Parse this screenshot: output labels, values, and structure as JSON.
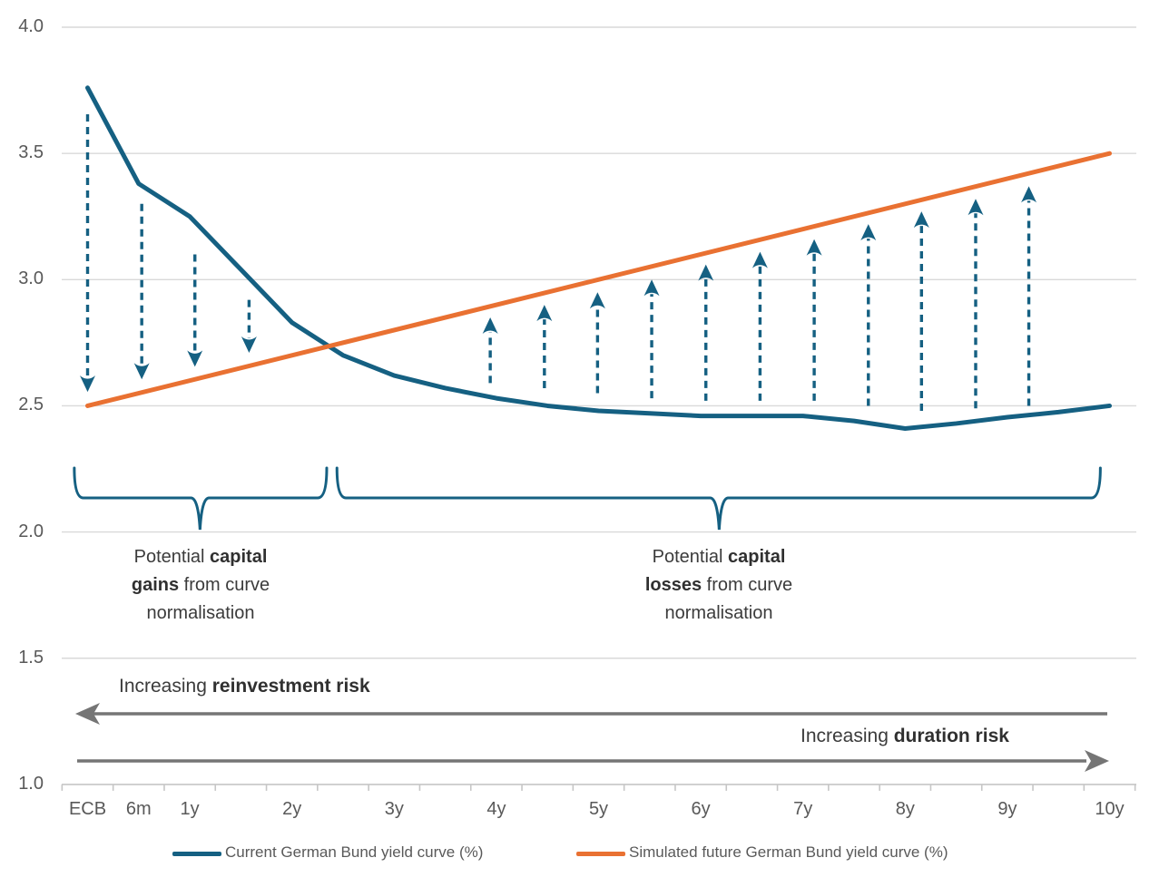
{
  "colors": {
    "blue": "#156082",
    "orange": "#E97132",
    "gray_arrow": "#757575",
    "grid": "#D9D9D9",
    "axis": "#C6C6C6",
    "tick_label": "#595959",
    "annotation_text": "#3b3b3b"
  },
  "chart_data": {
    "type": "line",
    "title": "",
    "x_axis": {
      "range": [
        -0.25,
        10.25
      ],
      "tick_step": 0.5,
      "labels": [
        {
          "label": "ECB",
          "x": 0
        },
        {
          "label": "6m",
          "x": 0.5
        },
        {
          "label": "1y",
          "x": 1
        },
        {
          "label": "2y",
          "x": 2
        },
        {
          "label": "3y",
          "x": 3
        },
        {
          "label": "4y",
          "x": 4
        },
        {
          "label": "5y",
          "x": 5
        },
        {
          "label": "6y",
          "x": 6
        },
        {
          "label": "7y",
          "x": 7
        },
        {
          "label": "8y",
          "x": 8
        },
        {
          "label": "9y",
          "x": 9
        },
        {
          "label": "10y",
          "x": 10
        }
      ]
    },
    "y_axis": {
      "range": [
        1.0,
        4.0
      ],
      "ticks": [
        "4.0",
        "3.5",
        "3.0",
        "2.5",
        "2.0",
        "1.5",
        "1.0"
      ],
      "tick_values": [
        4.0,
        3.5,
        3.0,
        2.5,
        2.0,
        1.5,
        1.0
      ],
      "gridlines": true
    },
    "series": [
      {
        "name": "Current German Bund yield curve (%)",
        "color": "#156082",
        "points": [
          [
            0,
            3.76
          ],
          [
            0.5,
            3.38
          ],
          [
            1,
            3.25
          ],
          [
            1.5,
            3.04
          ],
          [
            2,
            2.83
          ],
          [
            2.5,
            2.7
          ],
          [
            3,
            2.62
          ],
          [
            3.5,
            2.57
          ],
          [
            4,
            2.53
          ],
          [
            4.5,
            2.5
          ],
          [
            5,
            2.48
          ],
          [
            5.5,
            2.47
          ],
          [
            6,
            2.46
          ],
          [
            6.5,
            2.46
          ],
          [
            7,
            2.46
          ],
          [
            7.5,
            2.44
          ],
          [
            8,
            2.41
          ],
          [
            8.5,
            2.43
          ],
          [
            9,
            2.455
          ],
          [
            9.5,
            2.475
          ],
          [
            10,
            2.5
          ]
        ]
      },
      {
        "name": "Simulated future German Bund yield curve (%)",
        "color": "#E97132",
        "points": [
          [
            0,
            2.5
          ],
          [
            10,
            3.5
          ]
        ]
      }
    ],
    "gain_arrows": [
      {
        "x": 0.0,
        "from": 3.655,
        "to": 2.555
      },
      {
        "x": 0.53,
        "from": 3.3,
        "to": 2.605
      },
      {
        "x": 1.05,
        "from": 3.1,
        "to": 2.655
      },
      {
        "x": 1.58,
        "from": 2.92,
        "to": 2.71
      }
    ],
    "loss_arrows": [
      {
        "x": 3.94,
        "from": 2.59,
        "to": 2.85
      },
      {
        "x": 4.47,
        "from": 2.57,
        "to": 2.9
      },
      {
        "x": 4.99,
        "from": 2.55,
        "to": 2.95
      },
      {
        "x": 5.52,
        "from": 2.53,
        "to": 3.0
      },
      {
        "x": 6.05,
        "from": 2.52,
        "to": 3.06
      },
      {
        "x": 6.58,
        "from": 2.52,
        "to": 3.11
      },
      {
        "x": 7.11,
        "from": 2.52,
        "to": 3.16
      },
      {
        "x": 7.64,
        "from": 2.5,
        "to": 3.22
      },
      {
        "x": 8.16,
        "from": 2.48,
        "to": 3.27
      },
      {
        "x": 8.69,
        "from": 2.49,
        "to": 3.32
      },
      {
        "x": 9.21,
        "from": 2.5,
        "to": 3.37
      }
    ],
    "braces": [
      {
        "from_x": -0.13,
        "to_x": 2.34,
        "pointer_x": 1.1
      },
      {
        "from_x": 2.44,
        "to_x": 9.91,
        "pointer_x": 6.18
      }
    ]
  },
  "annotations": {
    "gains": {
      "lines": [
        [
          {
            "t": "Potential ",
            "b": false
          },
          {
            "t": "capital",
            "b": true
          }
        ],
        [
          {
            "t": "gains",
            "b": true
          },
          {
            "t": " from curve",
            "b": false
          }
        ],
        [
          {
            "t": "normalisation",
            "b": false
          }
        ]
      ]
    },
    "losses": {
      "lines": [
        [
          {
            "t": "Potential ",
            "b": false
          },
          {
            "t": "capital",
            "b": true
          }
        ],
        [
          {
            "t": "losses",
            "b": true
          },
          {
            "t": " from curve",
            "b": false
          }
        ],
        [
          {
            "t": "normalisation",
            "b": false
          }
        ]
      ]
    },
    "reinvestment_risk": [
      {
        "t": "Increasing ",
        "b": false
      },
      {
        "t": "reinvestment risk",
        "b": true
      }
    ],
    "duration_risk": [
      {
        "t": "Increasing ",
        "b": false
      },
      {
        "t": "duration risk",
        "b": true
      }
    ]
  },
  "legend": {
    "items": [
      {
        "label": "Current German Bund yield curve (%)",
        "color": "#156082"
      },
      {
        "label": "Simulated future German Bund yield curve (%)",
        "color": "#E97132"
      }
    ]
  }
}
